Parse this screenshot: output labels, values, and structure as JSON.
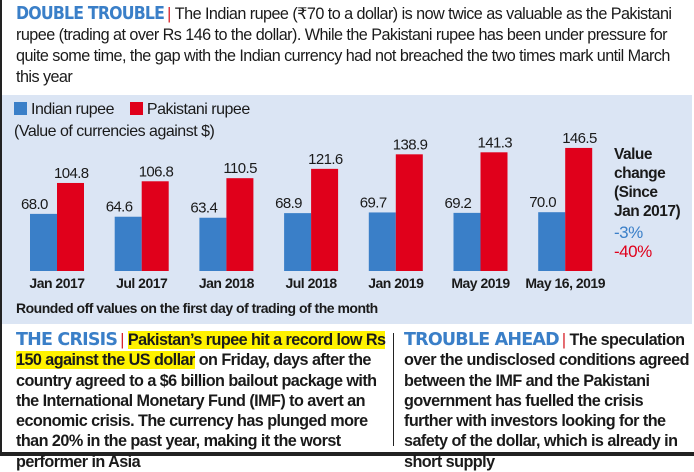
{
  "intro": {
    "kicker": "DOUBLE TROUBLE",
    "separator": "|",
    "text": "The Indian rupee (₹70 to a dollar) is now twice as valuable as the Pakistani rupee (trading at over Rs 146 to the dollar). While the Pakistani rupee has been under pressure for quite some time, the gap with the Indian currency had not breached the two times mark until March this year"
  },
  "legend": {
    "indian": "Indian rupee",
    "pakistani": "Pakistani rupee",
    "subtitle": "(Value of currencies against $)"
  },
  "colors": {
    "indian": "#3a7fc8",
    "pakistani": "#e0001b",
    "panel": "#dbe5f4",
    "kicker": "#3a7fc8",
    "highlight": "#fff200"
  },
  "chart_data": {
    "type": "bar",
    "title": "Value of currencies against $",
    "xlabel": "",
    "ylabel": "",
    "categories": [
      "Jan 2017",
      "Jul 2017",
      "Jan 2018",
      "Jul 2018",
      "Jan 2019",
      "May 2019",
      "May 16, 2019"
    ],
    "series": [
      {
        "name": "Indian rupee",
        "values": [
          68.0,
          64.6,
          63.4,
          68.9,
          69.7,
          69.2,
          70.0
        ]
      },
      {
        "name": "Pakistani rupee",
        "values": [
          104.8,
          106.8,
          110.5,
          121.6,
          138.9,
          141.3,
          146.5
        ]
      }
    ],
    "ylim": [
      0,
      150
    ],
    "grid": false,
    "legend_position": "top-left",
    "annotations": {
      "value_change_label": [
        "Value",
        "change",
        "(Since",
        "Jan 2017)"
      ],
      "indian_change": "-3%",
      "pakistani_change": "-40%"
    },
    "footnote": "Rounded off values on the first day of trading of the month"
  },
  "crisis": {
    "kicker": "THE CRISIS",
    "separator": "|",
    "highlight": "Pakistan’s rupee hit a record low Rs 150 against the US dollar",
    "text": " on Friday, days after the country agreed to a $6 billion bailout package with the International Monetary Fund (IMF) to avert an economic crisis.  The currency has plunged more than 20% in the past year, making it the worst performer in Asia"
  },
  "trouble_ahead": {
    "kicker": "TROUBLE AHEAD",
    "separator": "|",
    "text": "The speculation over the undisclosed conditions agreed between the IMF and the Pakistani government has fuelled the crisis further with investors looking for the safety of the dollar, which is already in short supply"
  }
}
